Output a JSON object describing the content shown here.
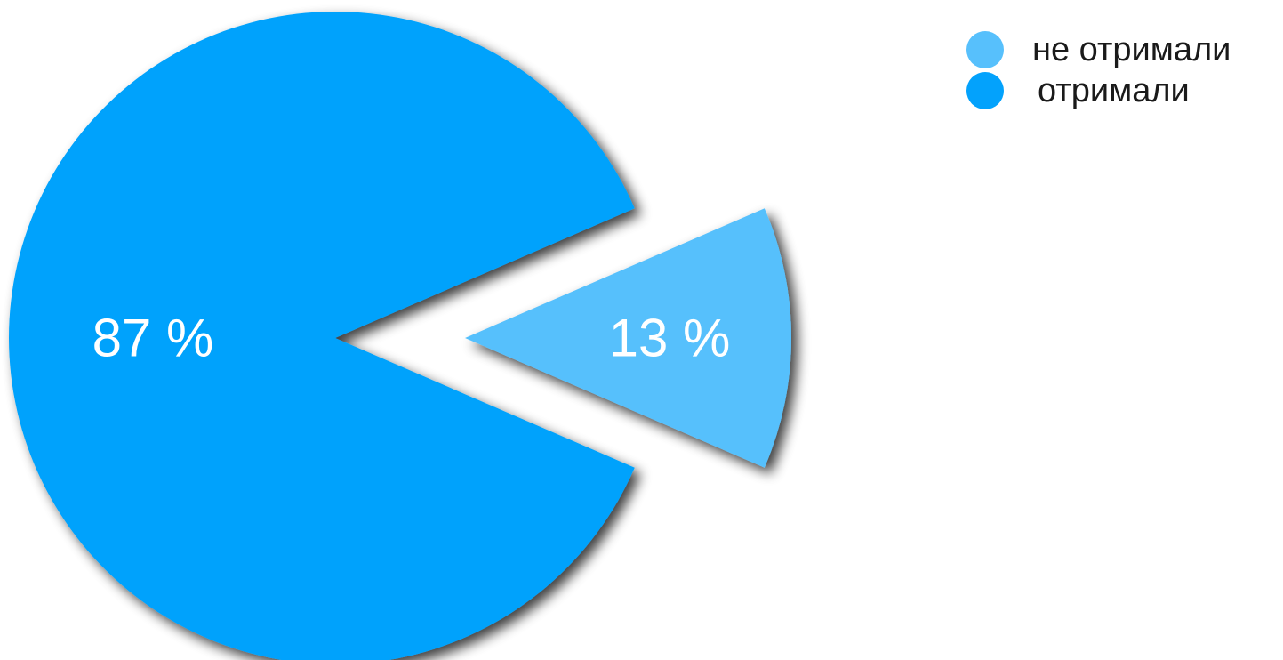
{
  "chart_data": {
    "type": "pie",
    "slices": [
      {
        "label": "отримали",
        "value": 87,
        "display": "87 %",
        "color": "#03a2fc",
        "exploded": false
      },
      {
        "label": "не отримали",
        "value": 13,
        "display": "13 %",
        "color": "#57c0fc",
        "exploded": true
      }
    ],
    "legend": {
      "placement": "top-right",
      "entries": [
        {
          "label": "не отримали",
          "color": "#57c0fc"
        },
        {
          "label": "отримали",
          "color": "#03a2fc"
        }
      ]
    }
  }
}
